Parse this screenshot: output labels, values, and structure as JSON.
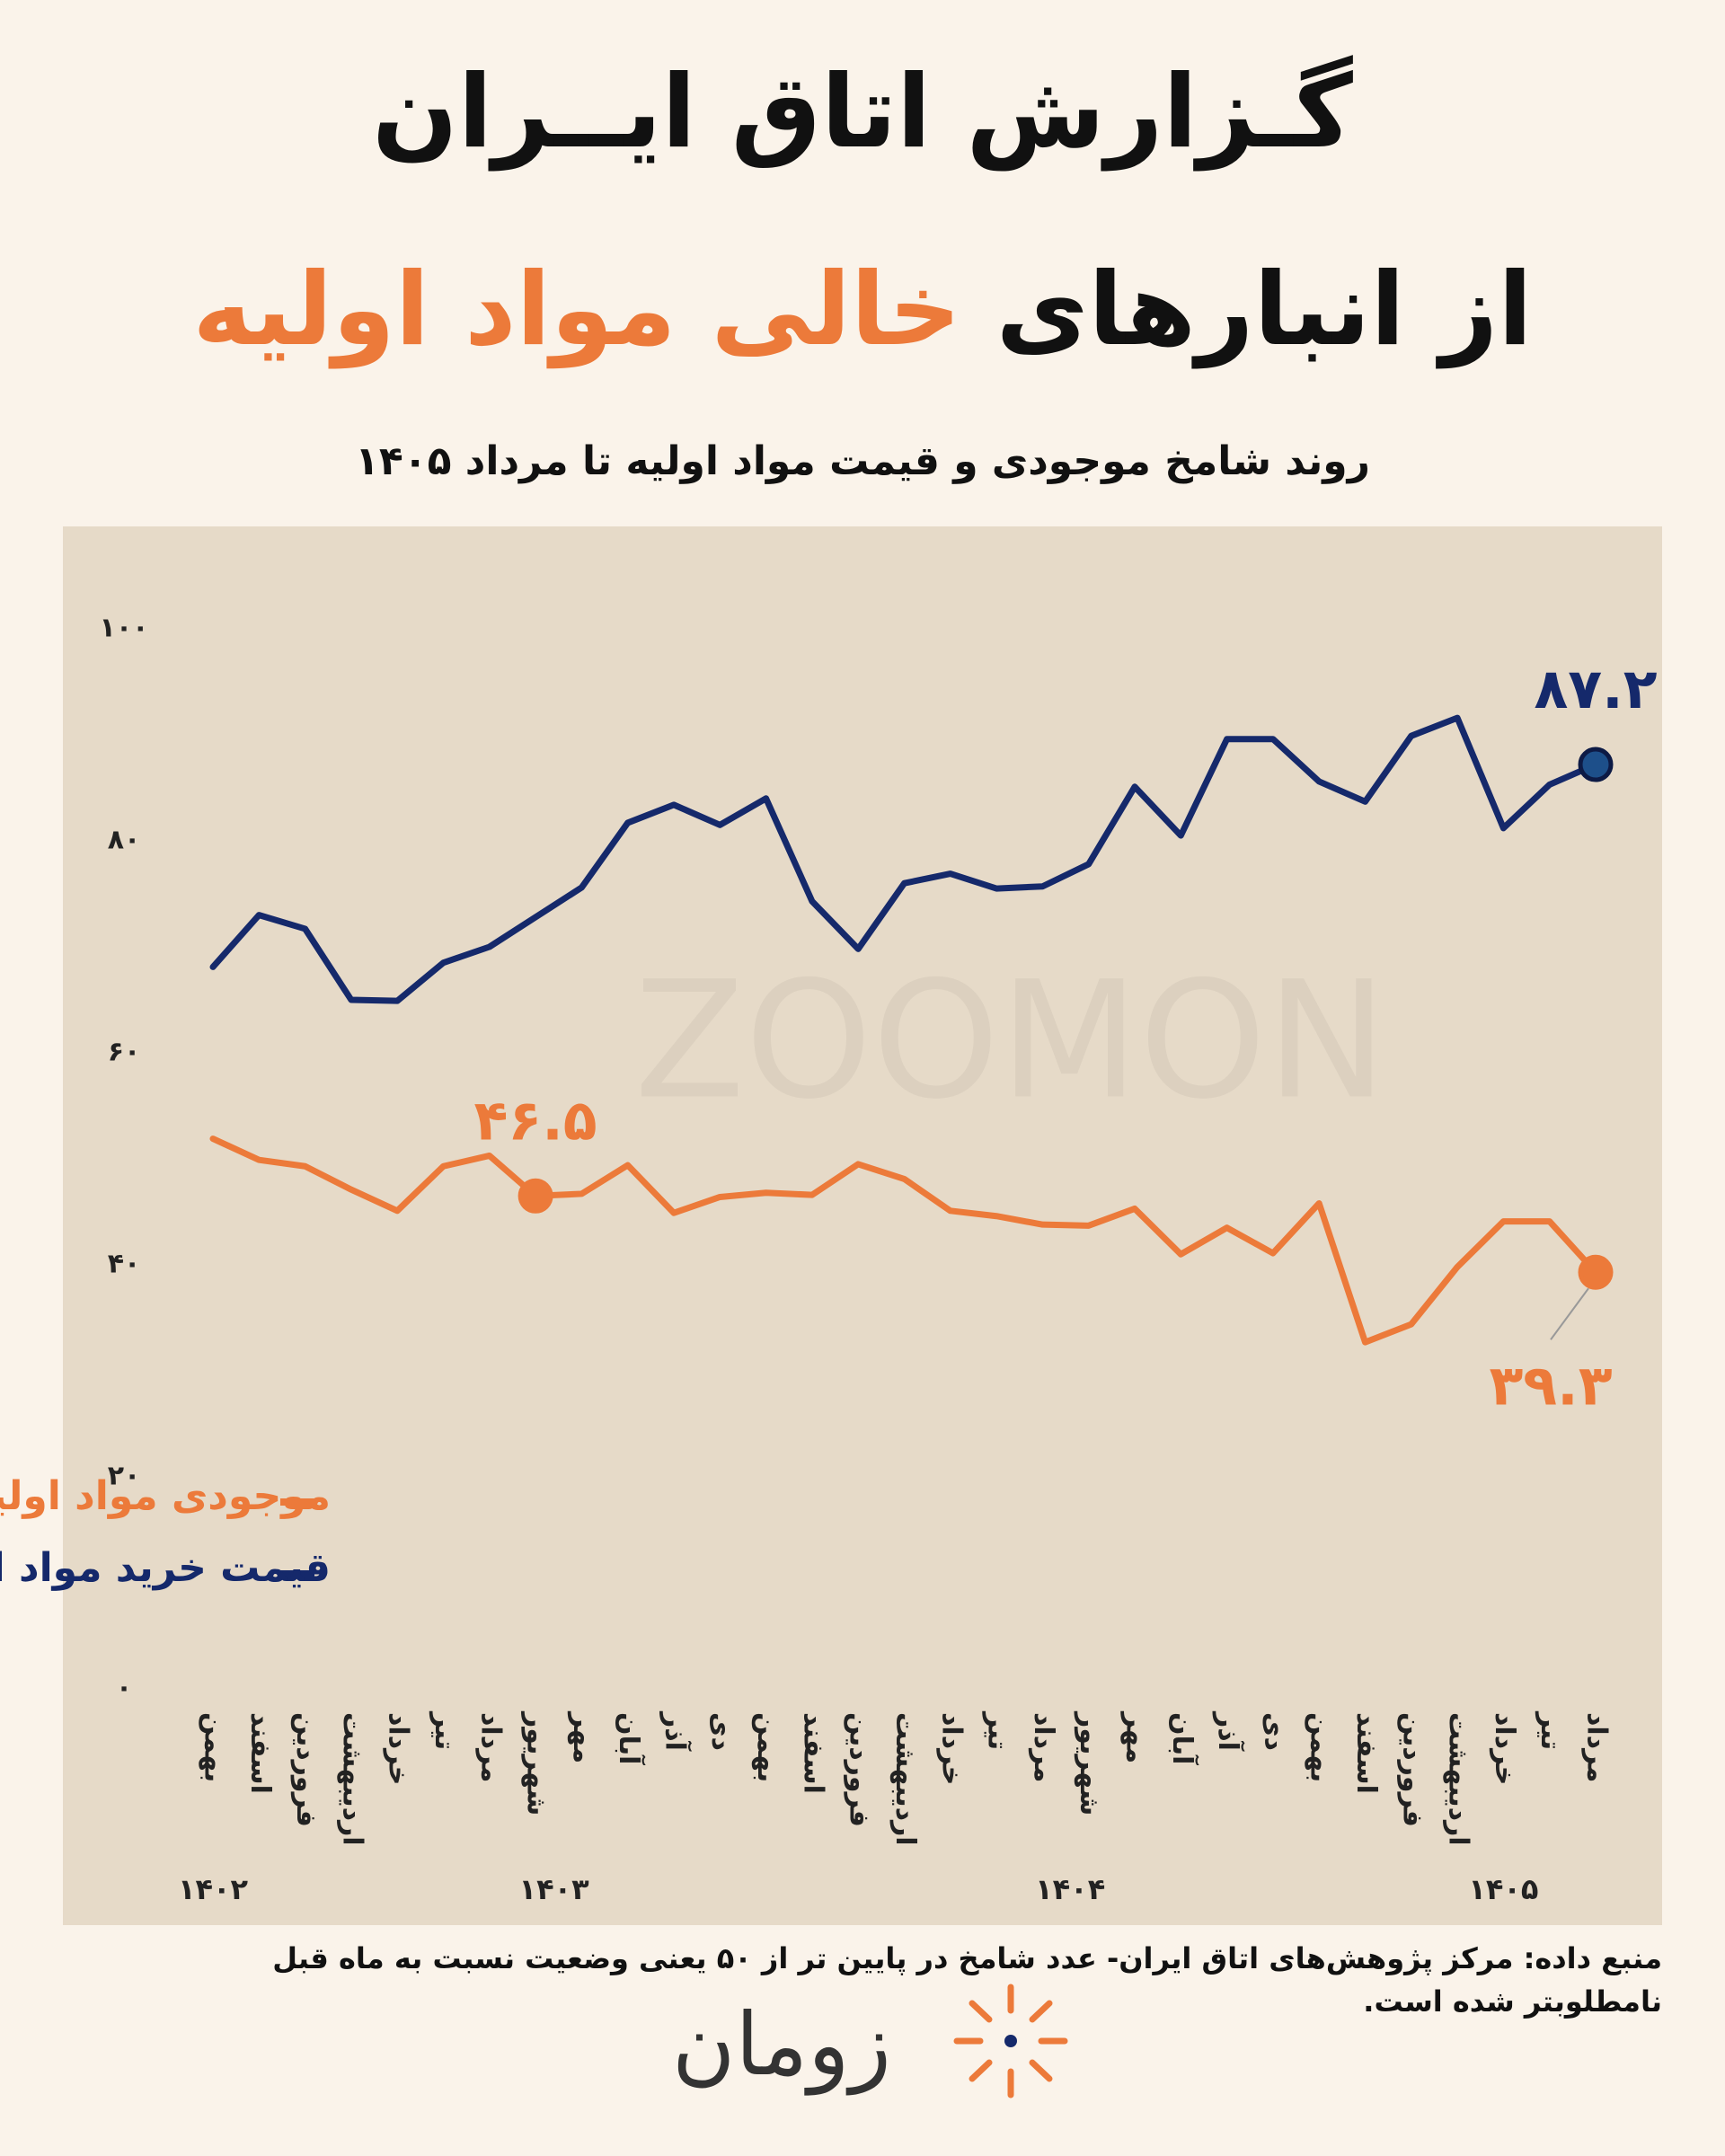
{
  "header": {
    "title": "گـزارش اتاق ایــران",
    "headline": [
      "از انبارهای",
      "خالی مواد اولیه"
    ],
    "subtitle": "روند شامخ موجودی و قیمت مواد اولیه تا مرداد ۱۴۰۵"
  },
  "chart_data": {
    "type": "line",
    "watermark": "ZOOMON",
    "categories": [
      "بهمن",
      "اسفند",
      "فروردین",
      "اردیبهشت",
      "خرداد",
      "تیر",
      "مرداد",
      "شهریور",
      "مهر",
      "آبان",
      "آذر",
      "دی",
      "بهمن",
      "اسفند",
      "فروردین",
      "اردیبهشت",
      "خرداد",
      "تیر",
      "مرداد",
      "شهریور",
      "مهر",
      "آبان",
      "آذر",
      "دی",
      "بهمن",
      "اسفند",
      "فروردین",
      "اردیبهشت",
      "خرداد",
      "تیر",
      "مرداد"
    ],
    "year_labels": [
      "۱۴۰۲",
      "۱۴۰۳",
      "۱۴۰۴",
      "۱۴۰۵"
    ],
    "series": [
      {
        "name": "قیمت خرید مواد اولیه یا لوازم خریداری شده",
        "color": "#15296b",
        "values": [
          68.1,
          73.0,
          71.7,
          65.0,
          64.9,
          68.5,
          70.0,
          72.8,
          75.6,
          81.7,
          83.4,
          81.5,
          84.0,
          74.3,
          69.8,
          76.0,
          76.9,
          75.5,
          75.7,
          77.8,
          85.1,
          80.5,
          89.6,
          89.6,
          85.6,
          83.7,
          89.9,
          91.6,
          81.2,
          85.3,
          87.2
        ],
        "value_labels": [
          null,
          null,
          null,
          null,
          null,
          null,
          null,
          null,
          null,
          null,
          null,
          null,
          null,
          null,
          null,
          null,
          null,
          null,
          null,
          null,
          null,
          null,
          null,
          null,
          null,
          null,
          null,
          null,
          null,
          null,
          "۸۷.۲"
        ]
      },
      {
        "name": "موجودی مواد اولیه یا لوازم خریداری شده",
        "color": "#ec7a3a",
        "values": [
          51.9,
          49.9,
          49.3,
          47.1,
          45.1,
          49.3,
          50.3,
          46.5,
          46.7,
          49.4,
          44.9,
          46.4,
          46.8,
          46.6,
          49.5,
          48.1,
          45.1,
          44.6,
          43.8,
          43.7,
          45.3,
          41.0,
          43.5,
          41.1,
          45.8,
          32.7,
          34.4,
          39.8,
          44.1,
          44.1,
          39.3
        ],
        "value_labels": [
          null,
          null,
          null,
          null,
          null,
          null,
          null,
          "۴۶.۵",
          null,
          null,
          null,
          null,
          null,
          null,
          null,
          null,
          null,
          null,
          null,
          null,
          null,
          null,
          null,
          null,
          null,
          null,
          null,
          null,
          null,
          null,
          "۳۹.۳"
        ]
      }
    ],
    "ylim": [
      0,
      100
    ],
    "yticks": [
      {
        "value": 0,
        "label": "۰"
      },
      {
        "value": 20,
        "label": "۲۰"
      },
      {
        "value": 40,
        "label": "۴۰"
      },
      {
        "value": 60,
        "label": "۶۰"
      },
      {
        "value": 80,
        "label": "۸۰"
      },
      {
        "value": 100,
        "label": "۱۰۰"
      }
    ],
    "grid": false
  },
  "footer": {
    "source": "منبع داده: مرکز پژوهش‌های اتاق ایران- عدد شامخ در پایین تر از ۵۰ یعنی وضعیت نسبت به ماه قبل نامطلوبتر شده است.",
    "logo": "زومان"
  }
}
